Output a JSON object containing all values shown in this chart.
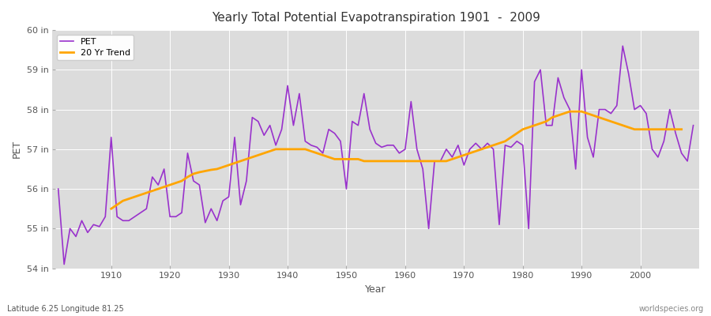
{
  "title": "Yearly Total Potential Evapotranspiration 1901  -  2009",
  "xlabel": "Year",
  "ylabel": "PET",
  "subtitle_left": "Latitude 6.25 Longitude 81.25",
  "subtitle_right": "worldspecies.org",
  "pet_color": "#9932CC",
  "trend_color": "#FFA500",
  "background_color": "#dcdcdc",
  "ylim": [
    54,
    60
  ],
  "ytick_labels": [
    "54 in",
    "55 in",
    "56 in",
    "57 in",
    "58 in",
    "59 in",
    "60 in"
  ],
  "ytick_values": [
    54,
    55,
    56,
    57,
    58,
    59,
    60
  ],
  "years": [
    1901,
    1902,
    1903,
    1904,
    1905,
    1906,
    1907,
    1908,
    1909,
    1910,
    1911,
    1912,
    1913,
    1914,
    1915,
    1916,
    1917,
    1918,
    1919,
    1920,
    1921,
    1922,
    1923,
    1924,
    1925,
    1926,
    1927,
    1928,
    1929,
    1930,
    1931,
    1932,
    1933,
    1934,
    1935,
    1936,
    1937,
    1938,
    1939,
    1940,
    1941,
    1942,
    1943,
    1944,
    1945,
    1946,
    1947,
    1948,
    1949,
    1950,
    1951,
    1952,
    1953,
    1954,
    1955,
    1956,
    1957,
    1958,
    1959,
    1960,
    1961,
    1962,
    1963,
    1964,
    1965,
    1966,
    1967,
    1968,
    1969,
    1970,
    1971,
    1972,
    1973,
    1974,
    1975,
    1976,
    1977,
    1978,
    1979,
    1980,
    1981,
    1982,
    1983,
    1984,
    1985,
    1986,
    1987,
    1988,
    1989,
    1990,
    1991,
    1992,
    1993,
    1994,
    1995,
    1996,
    1997,
    1998,
    1999,
    2000,
    2001,
    2002,
    2003,
    2004,
    2005,
    2006,
    2007,
    2008,
    2009
  ],
  "pet_values": [
    56.0,
    54.1,
    55.0,
    54.8,
    55.2,
    54.9,
    55.1,
    55.05,
    55.3,
    57.3,
    55.3,
    55.2,
    55.2,
    55.3,
    55.4,
    55.5,
    56.3,
    56.1,
    56.5,
    55.3,
    55.3,
    55.4,
    56.9,
    56.2,
    56.1,
    55.15,
    55.5,
    55.2,
    55.7,
    55.8,
    57.3,
    55.6,
    56.2,
    57.8,
    57.7,
    57.35,
    57.6,
    57.1,
    57.5,
    58.6,
    57.6,
    58.4,
    57.2,
    57.1,
    57.05,
    56.9,
    57.5,
    57.4,
    57.2,
    56.0,
    57.7,
    57.6,
    58.4,
    57.5,
    57.15,
    57.05,
    57.1,
    57.1,
    56.9,
    57.0,
    58.2,
    57.0,
    56.5,
    55.0,
    56.7,
    56.7,
    57.0,
    56.8,
    57.1,
    56.6,
    57.0,
    57.15,
    57.0,
    57.15,
    57.0,
    55.1,
    57.1,
    57.05,
    57.2,
    57.1,
    55.0,
    58.7,
    59.0,
    57.6,
    57.6,
    58.8,
    58.3,
    58.0,
    56.5,
    59.0,
    57.3,
    56.8,
    58.0,
    58.0,
    57.9,
    58.1,
    59.6,
    58.9,
    58.0,
    58.1,
    57.9,
    57.0,
    56.8,
    57.2,
    58.0,
    57.4,
    56.9,
    56.7,
    57.6
  ],
  "trend_values": [
    null,
    null,
    null,
    null,
    null,
    null,
    null,
    null,
    null,
    55.5,
    55.6,
    55.7,
    55.75,
    55.8,
    55.85,
    55.9,
    55.95,
    56.0,
    56.05,
    56.1,
    56.15,
    56.2,
    56.3,
    56.38,
    56.42,
    56.45,
    56.48,
    56.5,
    56.55,
    56.6,
    56.65,
    56.7,
    56.75,
    56.8,
    56.85,
    56.9,
    56.95,
    57.0,
    57.0,
    57.0,
    57.0,
    57.0,
    57.0,
    56.95,
    56.9,
    56.85,
    56.8,
    56.75,
    56.75,
    56.75,
    56.75,
    56.75,
    56.7,
    56.7,
    56.7,
    56.7,
    56.7,
    56.7,
    56.7,
    56.7,
    56.7,
    56.7,
    56.7,
    56.7,
    56.7,
    56.7,
    56.7,
    56.75,
    56.8,
    56.85,
    56.9,
    56.95,
    57.0,
    57.05,
    57.1,
    57.15,
    57.2,
    57.3,
    57.4,
    57.5,
    57.55,
    57.6,
    57.65,
    57.7,
    57.8,
    57.85,
    57.9,
    57.95,
    57.95,
    57.95,
    57.9,
    57.85,
    57.8,
    57.75,
    57.7,
    57.65,
    57.6,
    57.55,
    57.5,
    57.5,
    57.5,
    57.5,
    57.5,
    57.5,
    57.5,
    57.5,
    57.5
  ]
}
